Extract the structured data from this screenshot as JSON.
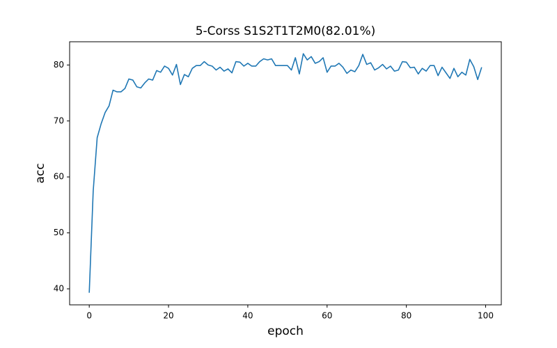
{
  "chart_data": {
    "type": "line",
    "title": "5-Corss S1S2T1T2M0(82.01%)",
    "x_label": "epoch",
    "y_label": "acc",
    "x": [
      0,
      1,
      2,
      3,
      4,
      5,
      6,
      7,
      8,
      9,
      10,
      11,
      12,
      13,
      14,
      15,
      16,
      17,
      18,
      19,
      20,
      21,
      22,
      23,
      24,
      25,
      26,
      27,
      28,
      29,
      30,
      31,
      32,
      33,
      34,
      35,
      36,
      37,
      38,
      39,
      40,
      41,
      42,
      43,
      44,
      45,
      46,
      47,
      48,
      49,
      50,
      51,
      52,
      53,
      54,
      55,
      56,
      57,
      58,
      59,
      60,
      61,
      62,
      63,
      64,
      65,
      66,
      67,
      68,
      69,
      70,
      71,
      72,
      73,
      74,
      75,
      76,
      77,
      78,
      79,
      80,
      81,
      82,
      83,
      84,
      85,
      86,
      87,
      88,
      89,
      90,
      91,
      92,
      93,
      94,
      95,
      96,
      97,
      98,
      99
    ],
    "series": [
      {
        "name": "acc",
        "color": "#1f77b4",
        "values": [
          39.3,
          57.5,
          67,
          69.5,
          71.5,
          72.7,
          75.5,
          75.2,
          75.2,
          75.8,
          77.5,
          77.3,
          76.1,
          75.9,
          76.8,
          77.5,
          77.3,
          79,
          78.7,
          79.8,
          79.4,
          78.2,
          80.1,
          76.5,
          78.3,
          77.9,
          79.4,
          79.9,
          79.9,
          80.6,
          80,
          79.8,
          79.1,
          79.6,
          78.9,
          79.3,
          78.6,
          80.6,
          80.5,
          79.8,
          80.3,
          79.8,
          79.8,
          80.6,
          81.1,
          80.9,
          81.1,
          79.9,
          79.9,
          79.9,
          79.9,
          79.1,
          81.3,
          78.4,
          82.01,
          80.9,
          81.5,
          80.3,
          80.6,
          81.3,
          78.7,
          79.8,
          79.8,
          80.3,
          79.6,
          78.5,
          79.1,
          78.8,
          79.9,
          81.9,
          80.1,
          80.4,
          79.1,
          79.5,
          80.1,
          79.3,
          79.8,
          78.9,
          79.1,
          80.6,
          80.5,
          79.5,
          79.6,
          78.4,
          79.4,
          78.9,
          79.9,
          79.9,
          78.1,
          79.6,
          78.6,
          77.6,
          79.4,
          77.9,
          78.7,
          78.2,
          81,
          79.7,
          77.4,
          79.6
        ]
      }
    ],
    "xlim": [
      -4.95,
      103.95
    ],
    "ylim": [
      37.14,
      84.15
    ],
    "xticks": [
      0,
      20,
      40,
      60,
      80,
      100
    ],
    "yticks": [
      40,
      50,
      60,
      70,
      80
    ]
  }
}
